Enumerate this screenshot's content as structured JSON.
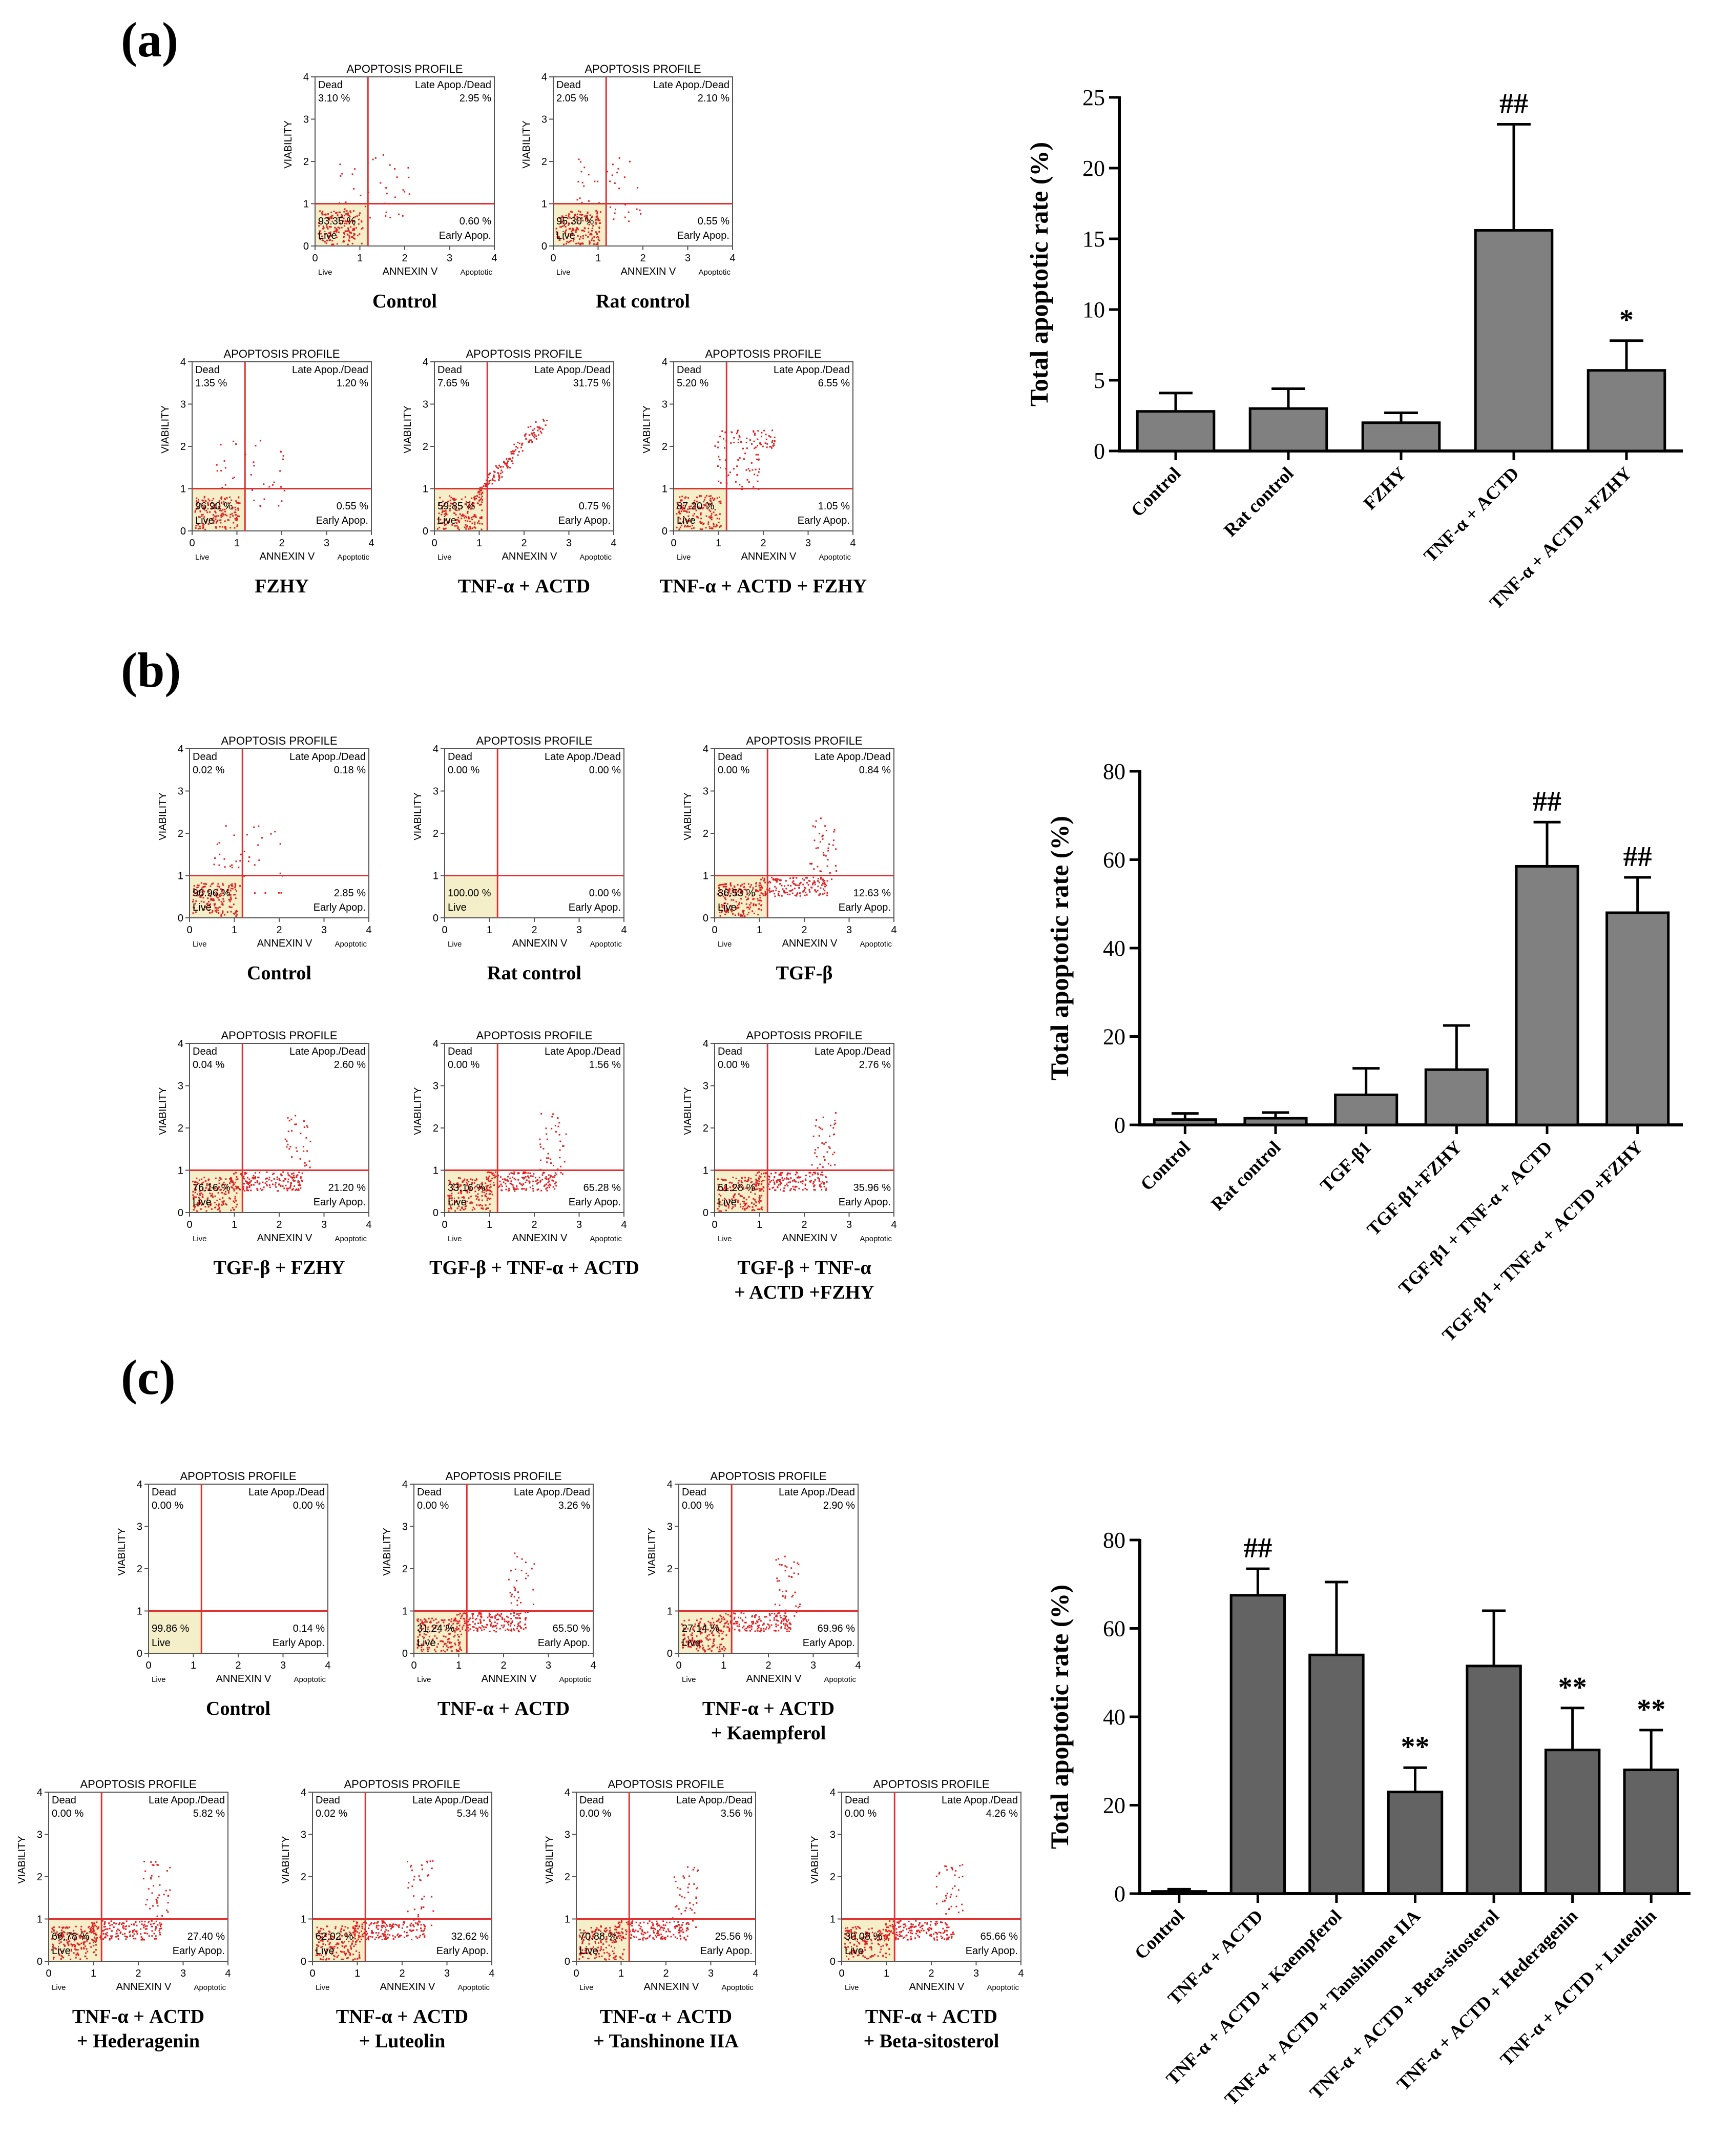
{
  "panels": [
    "(a)",
    "(b)",
    "(c)"
  ],
  "flow_common": {
    "title": "APOPTOSIS PROFILE",
    "x_label": "ANNEXIN V",
    "y_label": "VIABILITY",
    "q_dead": "Dead",
    "q_late": "Late Apop./Dead",
    "q_early": "Early Apop.",
    "q_live": "Live",
    "x_live": "Live",
    "x_apoptotic": "Apoptotic",
    "ticks": [
      "0",
      "1",
      "2",
      "3",
      "4"
    ]
  },
  "flow_plots": [
    {
      "caption": [
        "Control"
      ],
      "dead": "3.10 %",
      "late": "2.95 %",
      "early": "0.60 %",
      "live": "93.35 %",
      "scatter": "low"
    },
    {
      "caption": [
        "Rat control"
      ],
      "dead": "2.05 %",
      "late": "2.10 %",
      "early": "0.55 %",
      "live": "95.30 %",
      "scatter": "low"
    },
    {
      "caption": [
        "FZHY"
      ],
      "dead": "1.35 %",
      "late": "1.20 %",
      "early": "0.55 %",
      "live": "96.90 %",
      "scatter": "low"
    },
    {
      "caption": [
        "TNF-α + ACTD"
      ],
      "dead": "7.65 %",
      "late": "31.75 %",
      "early": "0.75 %",
      "live": "59.85 %",
      "scatter": "diag"
    },
    {
      "caption": [
        "TNF-α + ACTD + FZHY"
      ],
      "dead": "5.20 %",
      "late": "6.55 %",
      "early": "1.05 %",
      "live": "87.20 %",
      "scatter": "mid"
    },
    {
      "caption": [
        "Control"
      ],
      "dead": "0.02 %",
      "late": "0.18 %",
      "early": "2.85 %",
      "live": "96.96 %",
      "scatter": "low"
    },
    {
      "caption": [
        "Rat control"
      ],
      "dead": "0.00 %",
      "late": "0.00 %",
      "early": "0.00 %",
      "live": "100.00 %",
      "scatter": "none"
    },
    {
      "caption": [
        "TGF-β"
      ],
      "dead": "0.00 %",
      "late": "0.84 %",
      "early": "12.63 %",
      "live": "86.53 %",
      "scatter": "early"
    },
    {
      "caption": [
        "TGF-β + FZHY"
      ],
      "dead": "0.04 %",
      "late": "2.60 %",
      "early": "21.20 %",
      "live": "76.16 %",
      "scatter": "early"
    },
    {
      "caption": [
        "TGF-β + TNF-α + ACTD"
      ],
      "dead": "0.00 %",
      "late": "1.56 %",
      "early": "65.28 %",
      "live": "33.16 %",
      "scatter": "early"
    },
    {
      "caption": [
        "TGF-β + TNF-α",
        "+ ACTD +FZHY"
      ],
      "dead": "0.00 %",
      "late": "2.76 %",
      "early": "35.96 %",
      "live": "61.28 %",
      "scatter": "early"
    },
    {
      "caption": [
        "Control"
      ],
      "dead": "0.00 %",
      "late": "0.00 %",
      "early": "0.14 %",
      "live": "99.86 %",
      "scatter": "none"
    },
    {
      "caption": [
        "TNF-α + ACTD"
      ],
      "dead": "0.00 %",
      "late": "3.26 %",
      "early": "65.50 %",
      "live": "31.24 %",
      "scatter": "early"
    },
    {
      "caption": [
        "TNF-α + ACTD",
        "+ Kaempferol"
      ],
      "dead": "0.00 %",
      "late": "2.90 %",
      "early": "69.96 %",
      "live": "27.14 %",
      "scatter": "early"
    },
    {
      "caption": [
        "TNF-α + ACTD",
        "+ Hederagenin"
      ],
      "dead": "0.00 %",
      "late": "5.82 %",
      "early": "27.40 %",
      "live": "66.78 %",
      "scatter": "early"
    },
    {
      "caption": [
        "TNF-α + ACTD",
        "+ Luteolin"
      ],
      "dead": "0.02 %",
      "late": "5.34 %",
      "early": "32.62 %",
      "live": "62.02 %",
      "scatter": "early"
    },
    {
      "caption": [
        "TNF-α + ACTD",
        "+ Tanshinone IIA"
      ],
      "dead": "0.00 %",
      "late": "3.56 %",
      "early": "25.56 %",
      "live": "70.88 %",
      "scatter": "early"
    },
    {
      "caption": [
        "TNF-α + ACTD",
        "+ Beta-sitosterol"
      ],
      "dead": "0.00 %",
      "late": "4.26 %",
      "early": "65.66 %",
      "live": "30.08 %",
      "scatter": "early"
    }
  ],
  "chart_data": [
    {
      "type": "bar",
      "ylabel": "Total  apoptotic rate (%)",
      "ylim": [
        0,
        25
      ],
      "yticks": [
        "0",
        "5",
        "10",
        "15",
        "20",
        "25"
      ],
      "categories": [
        "Control",
        "Rat control",
        "FZHY",
        "TNF-α + ACTD",
        "TNF-α + ACTD +FZHY"
      ],
      "values": [
        2.8,
        3.0,
        2.0,
        15.6,
        5.7
      ],
      "errors": [
        1.3,
        1.4,
        0.7,
        7.5,
        2.1
      ],
      "annotations": [
        "",
        "",
        "",
        "##",
        "*"
      ],
      "bar_color": "#808080"
    },
    {
      "type": "bar",
      "ylabel": "Total  apoptotic rate (%)",
      "ylim": [
        0,
        80
      ],
      "yticks": [
        "0",
        "20",
        "40",
        "60",
        "80"
      ],
      "categories": [
        "Control",
        "Rat control",
        "TGF-β1",
        "TGF-β1+FZHY",
        "TGF-β1 + TNF-α + ACTD",
        "TGF-β1 + TNF-α + ACTD +FZHY"
      ],
      "values": [
        1.2,
        1.5,
        6.8,
        12.5,
        58.5,
        48.0
      ],
      "errors": [
        1.4,
        1.3,
        6.0,
        10.0,
        10.0,
        8.0
      ],
      "annotations": [
        "",
        "",
        "",
        "",
        "##",
        "##"
      ],
      "bar_color": "#808080"
    },
    {
      "type": "bar",
      "ylabel": "Total  apoptotic rate (%)",
      "ylim": [
        0,
        80
      ],
      "yticks": [
        "0",
        "20",
        "40",
        "60",
        "80"
      ],
      "categories": [
        "Control",
        "TNF-α + ACTD",
        "TNF-α + ACTD + Kaempferol",
        "TNF-α + ACTD + Tanshinone IIA",
        "TNF-α + ACTD + Beta-sitosterol",
        "TNF-α + ACTD + Hederagenin",
        "TNF-α + ACTD + Luteolin"
      ],
      "values": [
        0.5,
        67.5,
        54.0,
        23.0,
        51.5,
        32.5,
        28.0
      ],
      "errors": [
        0.5,
        6.0,
        16.5,
        5.5,
        12.5,
        9.5,
        9.0
      ],
      "annotations": [
        "",
        "##",
        "",
        "**",
        "",
        "**",
        "**"
      ],
      "bar_color": "#636363"
    }
  ]
}
